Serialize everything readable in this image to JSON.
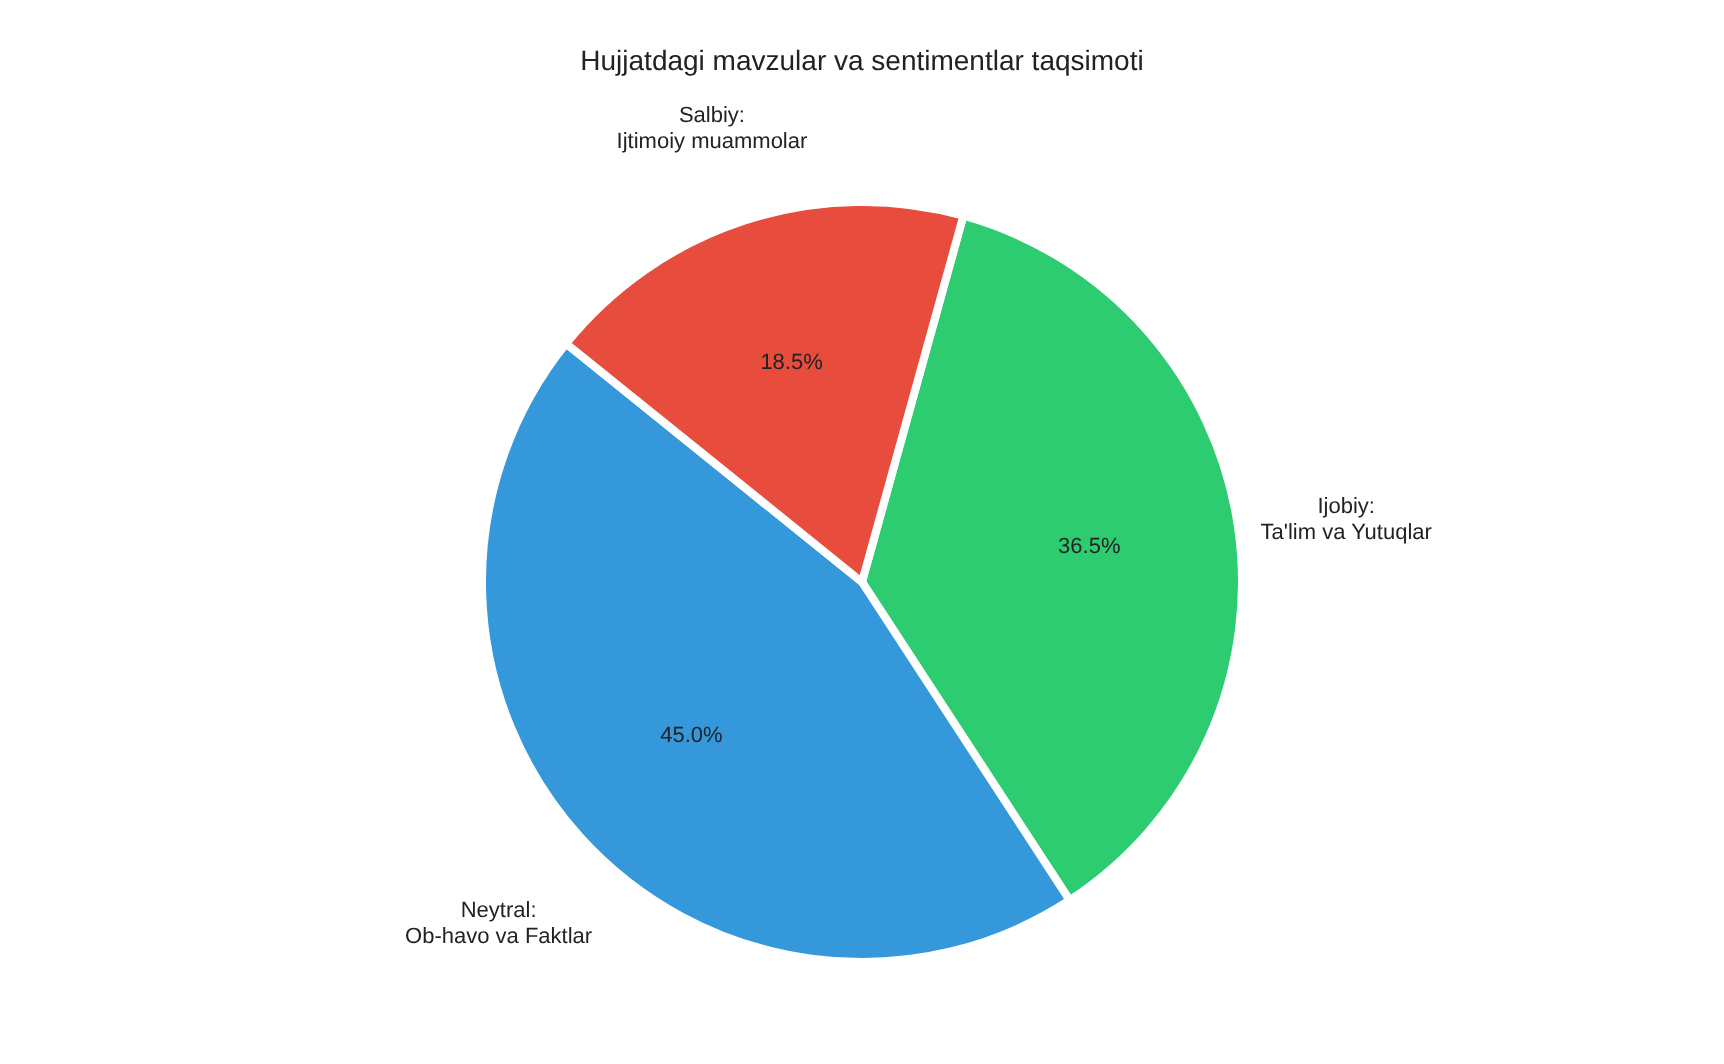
{
  "chart_data": {
    "type": "pie",
    "title": "Hujjatdagi mavzular va sentimentlar taqsimoti",
    "categories": [
      "Ijobiy:\nTa'lim va Yutuqlar",
      "Neytral:\nOb-havo va Faktlar",
      "Salbiy:\nIjtimoiy muammolar"
    ],
    "values": [
      36.5,
      45.0,
      18.5
    ],
    "colors": [
      "#2ecc71",
      "#3498db",
      "#e74c3c"
    ],
    "value_labels": [
      "36.5%",
      "45.0%",
      "18.5%"
    ],
    "legend": false
  }
}
